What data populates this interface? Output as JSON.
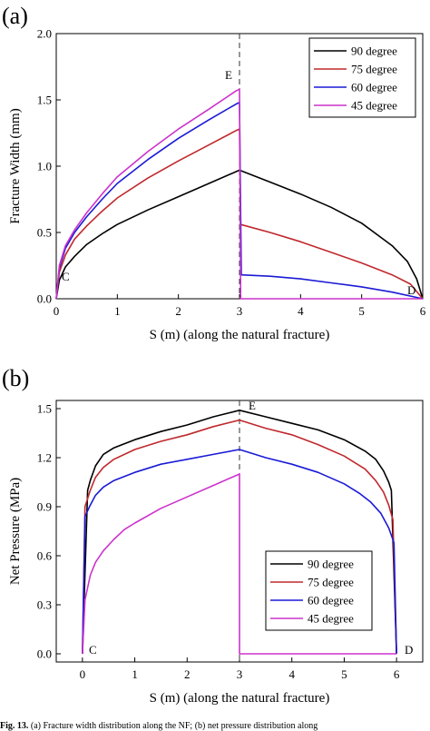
{
  "panels": [
    {
      "letter": "(a)",
      "point_labels": {
        "start": "C",
        "junction": "E",
        "end": "D"
      },
      "legend": [
        "90 degree",
        "75 degree",
        "60 degree",
        "45 degree"
      ]
    },
    {
      "letter": "(b)",
      "point_labels": {
        "start": "C",
        "junction": "E",
        "end": "D"
      },
      "legend": [
        "90 degree",
        "75 degree",
        "60 degree",
        "45 degree"
      ]
    }
  ],
  "series_colors": [
    "#000000",
    "#c0282c",
    "#1a1ad6",
    "#cc33cc"
  ],
  "caption": {
    "label": "Fig. 13.",
    "text": "(a) Fracture width distribution along the NF; (b) net pressure distribution along"
  },
  "chart_data": [
    {
      "type": "line",
      "xlabel": "S (m) (along the natural fracture)",
      "ylabel": "Fracture Width (mm)",
      "xlim": [
        0,
        6
      ],
      "ylim": [
        0,
        2.0
      ],
      "xticks": [
        0,
        1,
        2,
        3,
        4,
        5,
        6
      ],
      "yticks": [
        "0.0",
        "0.5",
        "1.0",
        "1.5",
        "2.0"
      ],
      "vline_x": 3,
      "legend_position": "top-right",
      "series": [
        {
          "name": "90 degree",
          "x": [
            0,
            0.05,
            0.15,
            0.3,
            0.5,
            0.75,
            1.0,
            1.5,
            2.0,
            2.5,
            3.0,
            3.5,
            4.0,
            4.5,
            5.0,
            5.5,
            5.75,
            5.9,
            6.0
          ],
          "y": [
            0.0,
            0.14,
            0.24,
            0.32,
            0.41,
            0.49,
            0.56,
            0.67,
            0.77,
            0.87,
            0.97,
            0.88,
            0.79,
            0.69,
            0.57,
            0.4,
            0.28,
            0.15,
            0.0
          ]
        },
        {
          "name": "75 degree",
          "x": [
            0,
            0.05,
            0.15,
            0.3,
            0.5,
            0.75,
            1.0,
            1.5,
            2.0,
            2.5,
            2.95,
            3.0,
            3.02,
            3.5,
            4.0,
            4.5,
            5.0,
            5.5,
            5.8,
            6.0
          ],
          "y": [
            0.0,
            0.2,
            0.33,
            0.45,
            0.55,
            0.66,
            0.76,
            0.91,
            1.04,
            1.16,
            1.27,
            1.28,
            0.56,
            0.5,
            0.43,
            0.35,
            0.27,
            0.18,
            0.11,
            0.0
          ]
        },
        {
          "name": "60 degree",
          "x": [
            0,
            0.05,
            0.15,
            0.3,
            0.5,
            0.75,
            1.0,
            1.5,
            2.0,
            2.5,
            2.95,
            3.0,
            3.03,
            3.5,
            4.0,
            4.5,
            5.0,
            5.5,
            6.0
          ],
          "y": [
            0.0,
            0.23,
            0.38,
            0.5,
            0.62,
            0.75,
            0.87,
            1.05,
            1.21,
            1.35,
            1.47,
            1.48,
            0.18,
            0.17,
            0.15,
            0.12,
            0.09,
            0.05,
            0.0
          ]
        },
        {
          "name": "45 degree",
          "x": [
            0,
            0.05,
            0.15,
            0.3,
            0.5,
            0.75,
            1.0,
            1.5,
            2.0,
            2.5,
            2.95,
            3.0,
            3.02,
            4.0,
            5.0,
            6.0
          ],
          "y": [
            0.0,
            0.25,
            0.4,
            0.52,
            0.65,
            0.79,
            0.92,
            1.11,
            1.28,
            1.43,
            1.57,
            1.58,
            0.0,
            0.0,
            0.0,
            0.0
          ]
        }
      ]
    },
    {
      "type": "line",
      "xlabel": "S (m) (along the natural fracture)",
      "ylabel": "Net Pressure (MPa)",
      "xlim": [
        -0.5,
        6.5
      ],
      "ylim": [
        -0.05,
        1.55
      ],
      "xticks": [
        0,
        1,
        2,
        3,
        4,
        5,
        6
      ],
      "yticks": [
        "0.0",
        "0.3",
        "0.6",
        "0.9",
        "1.2",
        "1.5"
      ],
      "vline_x": 3,
      "legend_position": "bottom-right",
      "series": [
        {
          "name": "90 degree",
          "x": [
            0,
            0.1,
            0.15,
            0.25,
            0.4,
            0.6,
            1.0,
            1.5,
            2.0,
            2.5,
            3.0,
            3.5,
            4.0,
            4.5,
            5.0,
            5.4,
            5.6,
            5.75,
            5.85,
            5.9,
            6.0
          ],
          "y": [
            0.0,
            1.0,
            1.06,
            1.15,
            1.22,
            1.26,
            1.31,
            1.36,
            1.4,
            1.45,
            1.49,
            1.45,
            1.41,
            1.37,
            1.31,
            1.24,
            1.19,
            1.12,
            1.05,
            1.0,
            0.0
          ]
        },
        {
          "name": "75 degree",
          "x": [
            0,
            0.05,
            0.15,
            0.25,
            0.4,
            0.6,
            1.0,
            1.5,
            2.0,
            2.5,
            3.0,
            3.5,
            4.0,
            4.5,
            5.0,
            5.4,
            5.6,
            5.75,
            5.85,
            5.93,
            6.0
          ],
          "y": [
            0.0,
            0.9,
            1.0,
            1.08,
            1.14,
            1.19,
            1.25,
            1.3,
            1.34,
            1.39,
            1.43,
            1.38,
            1.34,
            1.28,
            1.21,
            1.13,
            1.06,
            0.99,
            0.91,
            0.82,
            0.0
          ]
        },
        {
          "name": "60 degree",
          "x": [
            0,
            0.05,
            0.15,
            0.25,
            0.4,
            0.6,
            1.0,
            1.5,
            2.0,
            2.5,
            3.0,
            3.5,
            4.0,
            4.5,
            5.0,
            5.3,
            5.5,
            5.7,
            5.85,
            5.95,
            6.0
          ],
          "y": [
            0.0,
            0.84,
            0.91,
            0.97,
            1.02,
            1.06,
            1.11,
            1.16,
            1.19,
            1.22,
            1.25,
            1.2,
            1.16,
            1.11,
            1.04,
            0.98,
            0.93,
            0.86,
            0.77,
            0.68,
            0.0
          ]
        },
        {
          "name": "45 degree",
          "x": [
            0,
            0.05,
            0.15,
            0.25,
            0.4,
            0.6,
            0.8,
            1.0,
            1.5,
            2.0,
            2.5,
            3.0,
            3.0,
            4.0,
            5.0,
            6.0
          ],
          "y": [
            0.0,
            0.33,
            0.48,
            0.56,
            0.63,
            0.7,
            0.76,
            0.8,
            0.89,
            0.96,
            1.03,
            1.1,
            0.0,
            0.0,
            0.0,
            0.0
          ]
        }
      ]
    }
  ]
}
